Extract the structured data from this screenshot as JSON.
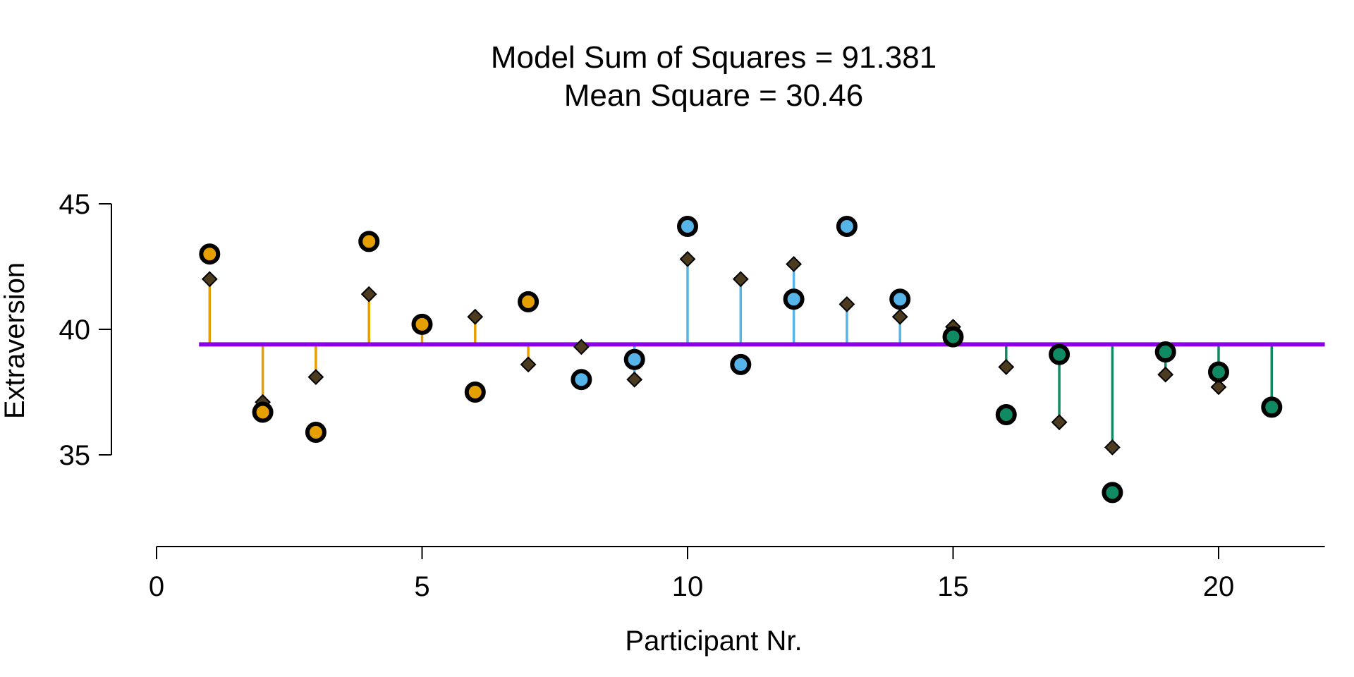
{
  "chart_data": {
    "type": "scatter",
    "title": "Model Sum of Squares = 91.381",
    "subtitle": "Mean Square = 30.46",
    "xlabel": "Participant Nr.",
    "ylabel": "Extraversion",
    "xlim": [
      0,
      22
    ],
    "ylim": [
      31,
      46
    ],
    "xticks": [
      0,
      5,
      10,
      15,
      20
    ],
    "yticks": [
      35,
      40,
      45
    ],
    "grand_mean": 39.4,
    "grid": false,
    "colors": {
      "mean_line": "#8A00E6",
      "group1": "#E69F00",
      "group2": "#56B4E9",
      "group3": "#108A63",
      "diamond": "#4D3B1F",
      "outline": "#000000"
    },
    "groups": [
      {
        "color_key": "group1",
        "x": [
          1,
          2,
          3,
          4,
          5,
          6,
          7
        ],
        "observed": [
          43.0,
          36.7,
          35.9,
          43.5,
          40.2,
          37.5,
          41.1
        ],
        "predicted": [
          42.0,
          37.1,
          38.1,
          41.4,
          40.2,
          40.5,
          38.6
        ]
      },
      {
        "color_key": "group2",
        "x": [
          8,
          9,
          10,
          11,
          12,
          13,
          14
        ],
        "observed": [
          38.0,
          38.8,
          44.1,
          38.6,
          41.2,
          44.1,
          41.2
        ],
        "predicted": [
          39.3,
          38.0,
          42.8,
          42.0,
          42.6,
          41.0,
          40.5
        ]
      },
      {
        "color_key": "group3",
        "x": [
          15,
          16,
          17,
          18,
          19,
          20,
          21
        ],
        "observed": [
          39.7,
          36.6,
          39.0,
          33.5,
          39.1,
          38.3,
          36.9
        ],
        "predicted": [
          40.1,
          38.5,
          36.3,
          35.3,
          38.2,
          37.7,
          36.9
        ]
      }
    ]
  }
}
